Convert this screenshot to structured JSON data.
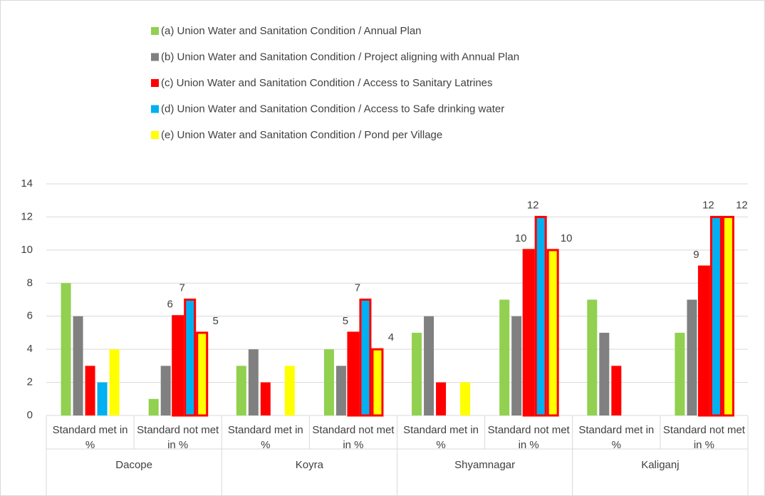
{
  "chart_data": {
    "type": "bar",
    "categories": [
      "Standard met in %",
      "Standard not met in %",
      "Standard met in %",
      "Standard not met in %",
      "Standard met in %",
      "Standard not met in %",
      "Standard met in %",
      "Standard not met in %"
    ],
    "groups": [
      "Dacope",
      "Koyra",
      "Shyamnagar",
      "Kaliganj"
    ],
    "series": [
      {
        "name": "(a) Union Water and Sanitation Condition / Annual Plan",
        "color": "#92d050",
        "values": [
          8,
          1,
          3,
          4,
          5,
          7,
          7,
          5
        ],
        "highlight": [
          false,
          false,
          false,
          false,
          false,
          false,
          false,
          false
        ]
      },
      {
        "name": "(b) Union Water and Sanitation Condition / Project aligning with Annual Plan",
        "color": "#808080",
        "values": [
          6,
          3,
          4,
          3,
          6,
          6,
          5,
          7
        ],
        "highlight": [
          false,
          false,
          false,
          false,
          false,
          false,
          false,
          false
        ]
      },
      {
        "name": "(c) Union Water and Sanitation Condition / Access to Sanitary Latrines",
        "color": "#ff0000",
        "values": [
          3,
          6,
          2,
          5,
          2,
          10,
          3,
          9
        ],
        "highlight": [
          false,
          true,
          false,
          true,
          false,
          true,
          false,
          true
        ]
      },
      {
        "name": "(d) Union Water and Sanitation Condition / Access to Safe drinking water",
        "color": "#00b0f0",
        "values": [
          2,
          7,
          0,
          7,
          0,
          12,
          0,
          12
        ],
        "highlight": [
          false,
          true,
          false,
          true,
          false,
          true,
          false,
          true
        ]
      },
      {
        "name": "(e) Union Water and Sanitation Condition / Pond per Village",
        "color": "#ffff00",
        "values": [
          4,
          5,
          3,
          4,
          2,
          10,
          0,
          12
        ],
        "highlight": [
          false,
          true,
          false,
          true,
          false,
          true,
          false,
          true
        ]
      }
    ],
    "ylim": [
      0,
      14
    ],
    "yticks": [
      0,
      2,
      4,
      6,
      8,
      10,
      12,
      14
    ],
    "grid": true,
    "legend": "top",
    "highlight_color": "#ff0000"
  }
}
